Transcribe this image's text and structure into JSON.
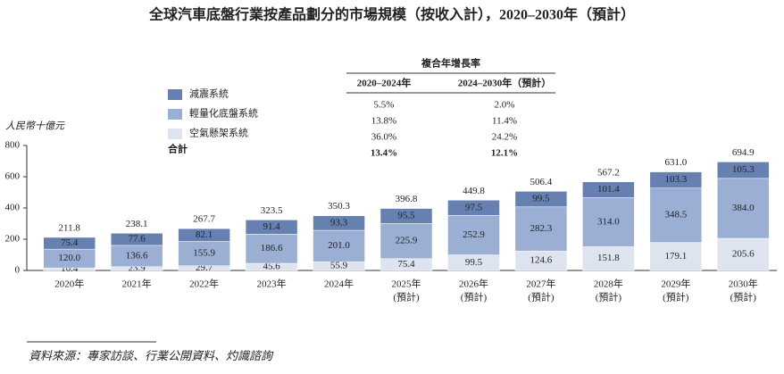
{
  "chart_data": {
    "type": "stacked_bar",
    "title": "全球汽車底盤行業按產品劃分的市場規模（按收入計），2020–2030年（預計）",
    "y_axis_label": "人民幣十億元",
    "categories": [
      "2020年",
      "2021年",
      "2022年",
      "2023年",
      "2024年",
      "2025年",
      "2026年",
      "2027年",
      "2028年",
      "2029年",
      "2030年"
    ],
    "category_sublabels": [
      null,
      null,
      null,
      null,
      null,
      "(預計)",
      "(預計)",
      "(預計)",
      "(預計)",
      "(預計)",
      "(預計)"
    ],
    "ylim": [
      0,
      800
    ],
    "yticks": [
      0,
      200,
      400,
      600,
      800
    ],
    "series": [
      {
        "name": "空氣懸架系統",
        "color": "#dde4ef",
        "values": [
          16.4,
          23.9,
          29.7,
          45.6,
          55.9,
          75.4,
          99.5,
          124.6,
          151.8,
          179.1,
          205.6
        ],
        "value_labels": [
          "16.4",
          "23.9",
          "29.7",
          "45.6",
          "55.9",
          "75.4",
          "99.5",
          "124.6",
          "151.8",
          "179.1",
          "205.6"
        ]
      },
      {
        "name": "輕量化底盤系統",
        "color": "#9aafd3",
        "values": [
          120.0,
          136.6,
          155.9,
          186.6,
          201.0,
          225.9,
          252.9,
          282.3,
          314.0,
          348.5,
          384.0
        ],
        "value_labels": [
          "120.0",
          "136.6",
          "155.9",
          "186.6",
          "201.0",
          "225.9",
          "252.9",
          "282.3",
          "314.0",
          "348.5",
          "384.0"
        ]
      },
      {
        "name": "減震系統",
        "color": "#6681b1",
        "values": [
          75.4,
          77.6,
          82.1,
          91.4,
          93.3,
          95.5,
          97.5,
          99.5,
          101.4,
          103.3,
          105.3
        ],
        "value_labels": [
          "75.4",
          "77.6",
          "82.1",
          "91.4",
          "93.3",
          "95.5",
          "97.5",
          "99.5",
          "101.4",
          "103.3",
          "105.3"
        ]
      }
    ],
    "totals": {
      "name": "合計",
      "values": [
        211.8,
        238.1,
        267.7,
        323.5,
        350.3,
        396.8,
        449.8,
        506.4,
        567.2,
        631.0,
        694.9
      ],
      "value_labels": [
        "211.8",
        "238.1",
        "267.7",
        "323.5",
        "350.3",
        "396.8",
        "449.8",
        "506.4",
        "567.2",
        "631.0",
        "694.9"
      ]
    },
    "cagr_table": {
      "title": "複合年增長率",
      "columns": [
        "2020–2024年",
        "2024–2030年（預計）"
      ],
      "rows": [
        [
          "5.5%",
          "2.0%"
        ],
        [
          "13.8%",
          "11.4%"
        ],
        [
          "36.0%",
          "24.2%"
        ],
        [
          "13.4%",
          "12.1%"
        ]
      ]
    },
    "source": "資料來源：專家訪談、行業公開資料、灼識諮詢"
  }
}
